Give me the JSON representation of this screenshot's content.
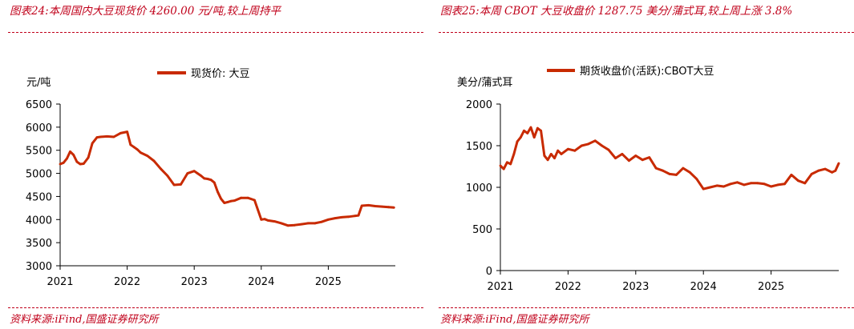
{
  "panels": [
    {
      "caption": "图表24:本周国内大豆现货价 4260.00 元/吨,较上周持平",
      "source": "资料来源:iFind,国盛证券研究所",
      "unit": "元/吨",
      "chart_data": {
        "type": "line",
        "title": "",
        "xlabel": "",
        "ylabel": "元/吨",
        "ylim": [
          3000,
          6500
        ],
        "yticks": [
          "3000",
          "3500",
          "4000",
          "4500",
          "5000",
          "5500",
          "6000",
          "6500"
        ],
        "xticks": [
          "2021",
          "2022",
          "2023",
          "2024",
          "2025"
        ],
        "xlim": [
          2021.0,
          2026.0
        ],
        "grid": false,
        "legend": "top-center",
        "color": "#c82a00",
        "series": [
          {
            "name": "现货价: 大豆",
            "x": [
              2021.0,
              2021.05,
              2021.1,
              2021.15,
              2021.2,
              2021.25,
              2021.3,
              2021.35,
              2021.42,
              2021.48,
              2021.55,
              2021.6,
              2021.7,
              2021.8,
              2021.9,
              2022.0,
              2022.05,
              2022.1,
              2022.15,
              2022.2,
              2022.3,
              2022.4,
              2022.5,
              2022.6,
              2022.7,
              2022.8,
              2022.9,
              2023.0,
              2023.05,
              2023.1,
              2023.15,
              2023.2,
              2023.25,
              2023.3,
              2023.35,
              2023.4,
              2023.45,
              2023.5,
              2023.55,
              2023.6,
              2023.7,
              2023.8,
              2023.9,
              2024.0,
              2024.05,
              2024.1,
              2024.2,
              2024.3,
              2024.4,
              2024.5,
              2024.6,
              2024.7,
              2024.8,
              2024.9,
              2025.0,
              2025.1,
              2025.2,
              2025.3,
              2025.4,
              2025.45,
              2025.5,
              2025.6,
              2025.7,
              2025.8,
              2025.9,
              2025.98
            ],
            "values": [
              5200,
              5230,
              5320,
              5470,
              5400,
              5250,
              5200,
              5210,
              5340,
              5650,
              5780,
              5790,
              5800,
              5790,
              5870,
              5900,
              5620,
              5570,
              5520,
              5450,
              5380,
              5270,
              5100,
              4950,
              4750,
              4760,
              5000,
              5050,
              5000,
              4950,
              4890,
              4880,
              4860,
              4800,
              4600,
              4450,
              4360,
              4380,
              4400,
              4410,
              4470,
              4470,
              4420,
              4000,
              4010,
              3980,
              3960,
              3920,
              3870,
              3880,
              3900,
              3920,
              3920,
              3950,
              4000,
              4030,
              4050,
              4060,
              4080,
              4090,
              4300,
              4310,
              4290,
              4280,
              4270,
              4260
            ]
          }
        ]
      }
    },
    {
      "caption": "图表25:本周 CBOT 大豆收盘价 1287.75 美分/蒲式耳,较上周上涨 3.8%",
      "source": "资料来源:iFind,国盛证券研究所",
      "unit": "美分/蒲式耳",
      "chart_data": {
        "type": "line",
        "title": "",
        "xlabel": "",
        "ylabel": "美分/蒲式耳",
        "ylim": [
          0,
          2000
        ],
        "yticks": [
          "0",
          "500",
          "1000",
          "1500",
          "2000"
        ],
        "xticks": [
          "2021",
          "2022",
          "2023",
          "2024",
          "2025"
        ],
        "xlim": [
          2021.0,
          2026.0
        ],
        "grid": false,
        "legend": "top-center",
        "color": "#c82a00",
        "series": [
          {
            "name": "期货收盘价(活跃):CBOT大豆",
            "x": [
              2021.0,
              2021.05,
              2021.1,
              2021.15,
              2021.2,
              2021.25,
              2021.3,
              2021.35,
              2021.4,
              2021.45,
              2021.5,
              2021.55,
              2021.6,
              2021.65,
              2021.7,
              2021.75,
              2021.8,
              2021.85,
              2021.9,
              2022.0,
              2022.1,
              2022.2,
              2022.3,
              2022.4,
              2022.5,
              2022.6,
              2022.7,
              2022.8,
              2022.9,
              2023.0,
              2023.1,
              2023.2,
              2023.3,
              2023.4,
              2023.5,
              2023.6,
              2023.7,
              2023.8,
              2023.9,
              2024.0,
              2024.1,
              2024.2,
              2024.3,
              2024.4,
              2024.5,
              2024.6,
              2024.7,
              2024.8,
              2024.9,
              2025.0,
              2025.1,
              2025.2,
              2025.3,
              2025.4,
              2025.5,
              2025.6,
              2025.7,
              2025.8,
              2025.9,
              2025.95,
              2026.0
            ],
            "values": [
              1260,
              1220,
              1300,
              1280,
              1400,
              1550,
              1600,
              1680,
              1650,
              1720,
              1600,
              1710,
              1680,
              1380,
              1330,
              1400,
              1350,
              1440,
              1400,
              1460,
              1440,
              1500,
              1520,
              1560,
              1500,
              1450,
              1350,
              1400,
              1320,
              1380,
              1330,
              1360,
              1230,
              1200,
              1160,
              1150,
              1230,
              1180,
              1100,
              980,
              1000,
              1020,
              1010,
              1040,
              1060,
              1030,
              1050,
              1050,
              1040,
              1010,
              1030,
              1040,
              1150,
              1080,
              1050,
              1160,
              1200,
              1220,
              1180,
              1200,
              1288
            ]
          }
        ]
      }
    }
  ]
}
